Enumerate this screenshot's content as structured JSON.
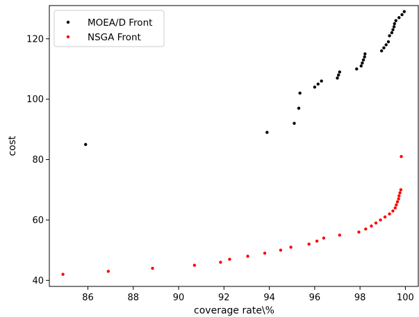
{
  "chart_data": {
    "type": "scatter",
    "title": "",
    "xlabel": "coverage rate\\%",
    "ylabel": "cost",
    "xlim": [
      84.3,
      100.6
    ],
    "ylim": [
      38,
      131
    ],
    "xticks": [
      86,
      88,
      90,
      92,
      94,
      96,
      98,
      100
    ],
    "yticks": [
      40,
      60,
      80,
      100,
      120
    ],
    "grid": false,
    "legend_position": "top-left",
    "series": [
      {
        "name": "MOEA/D Front",
        "color": "#000000",
        "points": [
          [
            85.9,
            85
          ],
          [
            93.9,
            89
          ],
          [
            95.1,
            92
          ],
          [
            95.3,
            97
          ],
          [
            95.35,
            102
          ],
          [
            96.0,
            104
          ],
          [
            96.15,
            105
          ],
          [
            96.3,
            106
          ],
          [
            97.0,
            107
          ],
          [
            97.05,
            108
          ],
          [
            97.1,
            109
          ],
          [
            97.85,
            110
          ],
          [
            98.05,
            111
          ],
          [
            98.1,
            112
          ],
          [
            98.15,
            113
          ],
          [
            98.2,
            114
          ],
          [
            98.22,
            115
          ],
          [
            98.95,
            116
          ],
          [
            99.05,
            117
          ],
          [
            99.15,
            118
          ],
          [
            99.25,
            119
          ],
          [
            99.3,
            121
          ],
          [
            99.4,
            122
          ],
          [
            99.45,
            123
          ],
          [
            99.5,
            124
          ],
          [
            99.52,
            125
          ],
          [
            99.58,
            126
          ],
          [
            99.72,
            127
          ],
          [
            99.85,
            128
          ],
          [
            99.95,
            129
          ]
        ]
      },
      {
        "name": "NSGA Front",
        "color": "#ff0000",
        "points": [
          [
            84.9,
            42
          ],
          [
            86.9,
            43
          ],
          [
            88.85,
            44
          ],
          [
            90.7,
            45
          ],
          [
            91.85,
            46
          ],
          [
            92.25,
            47
          ],
          [
            93.05,
            48
          ],
          [
            93.8,
            49
          ],
          [
            94.5,
            50
          ],
          [
            94.95,
            51
          ],
          [
            95.75,
            52
          ],
          [
            96.1,
            53
          ],
          [
            96.4,
            54
          ],
          [
            97.1,
            55
          ],
          [
            97.95,
            56
          ],
          [
            98.25,
            57
          ],
          [
            98.5,
            58
          ],
          [
            98.7,
            59
          ],
          [
            98.9,
            60
          ],
          [
            99.1,
            61
          ],
          [
            99.3,
            62
          ],
          [
            99.45,
            63
          ],
          [
            99.55,
            64
          ],
          [
            99.6,
            65
          ],
          [
            99.65,
            66
          ],
          [
            99.7,
            67
          ],
          [
            99.72,
            68
          ],
          [
            99.76,
            69
          ],
          [
            99.8,
            70
          ],
          [
            99.82,
            81
          ]
        ]
      }
    ]
  }
}
